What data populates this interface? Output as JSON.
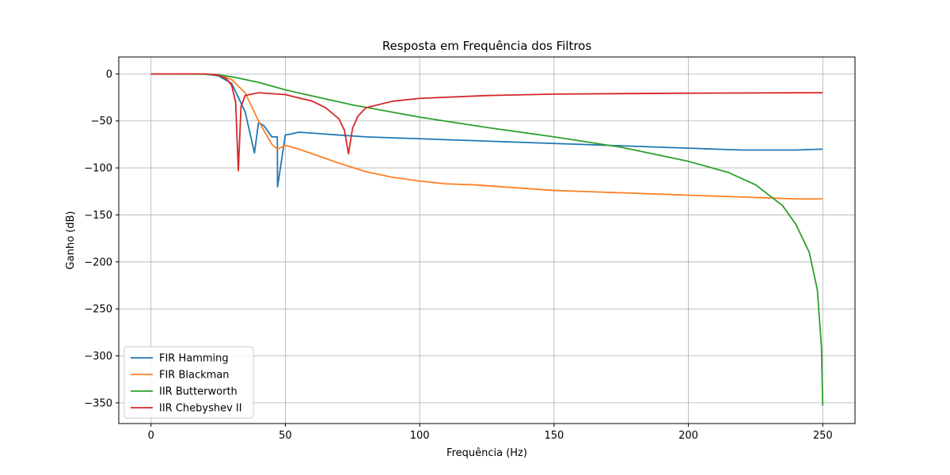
{
  "chart_data": {
    "type": "line",
    "title": "Resposta em Frequência dos Filtros",
    "xlabel": "Frequência (Hz)",
    "ylabel": "Ganho (dB)",
    "xlim": [
      -12,
      262
    ],
    "ylim": [
      -372,
      18
    ],
    "xticks": [
      0,
      50,
      100,
      150,
      200,
      250
    ],
    "yticks": [
      0,
      -50,
      -100,
      -150,
      -200,
      -250,
      -300,
      -350
    ],
    "grid": true,
    "legend_position": "lower-left",
    "series": [
      {
        "name": "FIR Hamming",
        "color": "#1f77b4",
        "x": [
          0,
          20,
          25,
          30,
          35,
          38.5,
          40,
          42,
          45,
          47,
          47.1,
          50,
          52,
          55,
          60,
          65,
          70,
          75,
          80,
          90,
          100,
          110,
          120,
          130,
          140,
          150,
          160,
          170,
          180,
          190,
          200,
          210,
          220,
          230,
          240,
          250
        ],
        "y": [
          0,
          -0.1,
          -2,
          -10,
          -40,
          -84,
          -52,
          -55,
          -67,
          -67,
          -120,
          -65,
          -64,
          -62,
          -63,
          -64,
          -65,
          -66,
          -67,
          -68,
          -69,
          -70,
          -71,
          -72,
          -73,
          -74,
          -75,
          -76,
          -77,
          -78,
          -79,
          -80,
          -81,
          -81,
          -81,
          -80
        ]
      },
      {
        "name": "FIR Blackman",
        "color": "#ff7f22",
        "x": [
          0,
          20,
          25,
          30,
          35,
          40,
          45,
          47,
          50,
          55,
          60,
          70,
          80,
          90,
          100,
          110,
          120,
          130,
          140,
          150,
          160,
          170,
          180,
          190,
          200,
          210,
          220,
          230,
          240,
          250
        ],
        "y": [
          0,
          -0.1,
          -1,
          -6,
          -20,
          -50,
          -75,
          -80,
          -76,
          -80,
          -85,
          -95,
          -104,
          -110,
          -114,
          -117,
          -118,
          -120,
          -122,
          -124,
          -125,
          -126,
          -127,
          -128,
          -129,
          -130,
          -131,
          -132,
          -133,
          -133
        ]
      },
      {
        "name": "IIR Butterworth",
        "color": "#2ca02c",
        "x": [
          0,
          10,
          20,
          25,
          30,
          40,
          50,
          75,
          100,
          125,
          150,
          175,
          200,
          215,
          225,
          235,
          240,
          245,
          248,
          249.5,
          250
        ],
        "y": [
          0,
          0,
          -0.3,
          -1,
          -3,
          -9,
          -17,
          -33,
          -46,
          -57,
          -67,
          -78,
          -93,
          -105,
          -118,
          -140,
          -160,
          -190,
          -230,
          -290,
          -353
        ]
      },
      {
        "name": "IIR Chebyshev II",
        "color": "#d62728",
        "x": [
          0,
          20,
          25,
          28,
          30,
          31.5,
          32.5,
          33.5,
          35,
          40,
          50,
          60,
          65,
          70,
          72,
          73.5,
          75,
          77,
          80,
          90,
          100,
          125,
          150,
          200,
          250
        ],
        "y": [
          0,
          0,
          -1,
          -5,
          -12,
          -30,
          -103,
          -35,
          -23,
          -20,
          -22,
          -29,
          -36,
          -48,
          -60,
          -85,
          -58,
          -45,
          -36,
          -29,
          -26,
          -23,
          -21.5,
          -20.5,
          -20
        ]
      }
    ]
  }
}
